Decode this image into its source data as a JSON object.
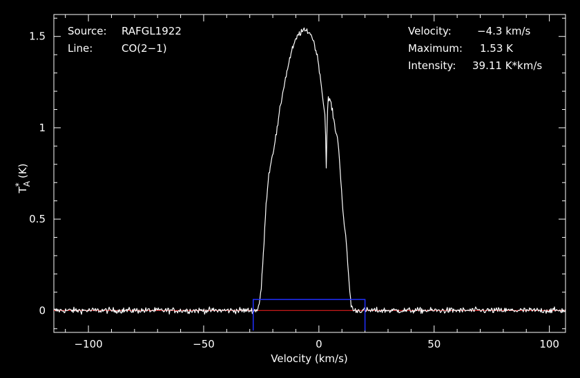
{
  "chart_data": {
    "type": "line",
    "xlabel": "Velocity (km/s)",
    "ylabel": "T",
    "ylabel_sup": "*",
    "ylabel_sub": "A",
    "ylabel_unit": "(K)",
    "xlim": [
      -115,
      107
    ],
    "ylim": [
      -0.12,
      1.62
    ],
    "xticks": [
      -100,
      -50,
      0,
      50,
      100
    ],
    "xtick_labels": [
      "−100",
      "−50",
      "0",
      "50",
      "100"
    ],
    "yticks": [
      0,
      0.5,
      1,
      1.5
    ],
    "ytick_labels": [
      "0",
      "0.5",
      "1",
      "1.5"
    ],
    "grid": false,
    "colors": {
      "spectrum": "#ffffff",
      "baseline": "#ff2020",
      "window": "#2030ff",
      "axes": "#ffffff"
    },
    "baseline_level": 0,
    "window": {
      "x0": -28.5,
      "x1": 20,
      "y0": -0.11,
      "y1": 0.06
    },
    "series": [
      {
        "noise_rms": 0.008,
        "x": [
          -27,
          -26,
          -25,
          -24,
          -23,
          -22,
          -21,
          -20,
          -19,
          -18,
          -17,
          -16,
          -15,
          -14,
          -13,
          -12,
          -11,
          -10,
          -9,
          -8,
          -7,
          -6,
          -5,
          -4,
          -3,
          -2,
          -1,
          0,
          1,
          2,
          2.8,
          3.2,
          3.6,
          4,
          5,
          6,
          7,
          8,
          9,
          10,
          11,
          12,
          13,
          14,
          15
        ],
        "values": [
          0,
          0.03,
          0.12,
          0.33,
          0.56,
          0.72,
          0.8,
          0.86,
          0.93,
          1.0,
          1.09,
          1.17,
          1.24,
          1.3,
          1.36,
          1.41,
          1.45,
          1.48,
          1.51,
          1.52,
          1.53,
          1.53,
          1.53,
          1.52,
          1.5,
          1.46,
          1.41,
          1.34,
          1.24,
          1.13,
          1.05,
          0.78,
          1.03,
          1.16,
          1.15,
          1.08,
          1.0,
          0.95,
          0.82,
          0.62,
          0.46,
          0.36,
          0.16,
          0.03,
          0
        ]
      }
    ]
  },
  "annotations": {
    "source_label": "Source:",
    "source_value": "RAFGL1922",
    "line_label": "Line:",
    "line_value": "CO(2−1)",
    "velocity_label": "Velocity:",
    "velocity_value": "−4.3 km/s",
    "maximum_label": "Maximum:",
    "maximum_value": "1.53 K",
    "intensity_label": "Intensity:",
    "intensity_value": "39.11 K*km/s"
  }
}
